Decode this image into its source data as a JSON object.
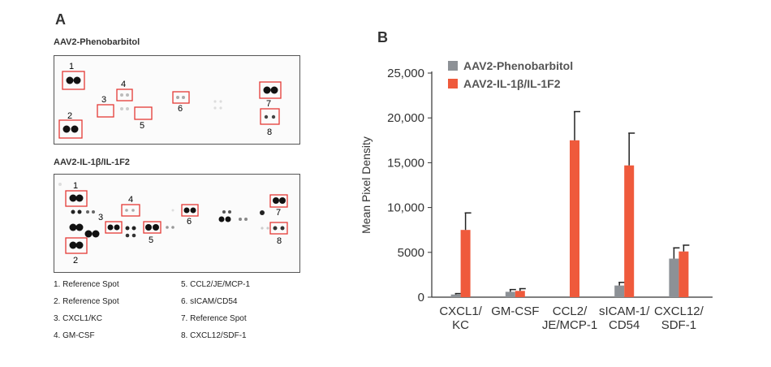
{
  "panel_a": {
    "letter": "A",
    "blot1": {
      "title": "AAV2-Phenobarbitol",
      "labels": [
        "1",
        "2",
        "3",
        "4",
        "5",
        "6",
        "7",
        "8"
      ]
    },
    "blot2": {
      "title": "AAV2-IL-1β/IL-1F2",
      "labels": [
        "1",
        "2",
        "3",
        "4",
        "5",
        "6",
        "7",
        "8"
      ]
    },
    "legend_left": [
      "1. Reference Spot",
      "2. Reference Spot",
      "3. CXCL1/KC",
      "4. GM-CSF"
    ],
    "legend_right": [
      "5. CCL2/JE/MCP-1",
      "6. sICAM/CD54",
      "7. Reference Spot",
      "8. CXCL12/SDF-1"
    ]
  },
  "panel_b": {
    "letter": "B"
  },
  "colors": {
    "phenobarbitol": "#8d9196",
    "il1b": "#ef5a3c",
    "box": "#e53935"
  },
  "chart_data": {
    "type": "bar",
    "title": "",
    "xlabel": "",
    "ylabel": "Mean Pixel Density",
    "ylim": [
      0,
      25000
    ],
    "yticks": [
      0,
      5000,
      10000,
      15000,
      20000,
      25000
    ],
    "ytick_labels": [
      "0",
      "5000",
      "10,000",
      "15,000",
      "20,000",
      "25,000"
    ],
    "categories": [
      [
        "CXCL1/",
        "KC"
      ],
      [
        "GM-CSF"
      ],
      [
        "CCL2/",
        "JE/MCP-1"
      ],
      [
        "sICAM-1/",
        "CD54"
      ],
      [
        "CXCL12/",
        "SDF-1"
      ]
    ],
    "series": [
      {
        "name": "AAV2-Phenobarbitol",
        "values": [
          300,
          600,
          0,
          1300,
          4300
        ],
        "errors": [
          100,
          250,
          0,
          350,
          1200
        ]
      },
      {
        "name": "AAV2-IL-1β/IL-1F2",
        "values": [
          7500,
          700,
          17500,
          14700,
          5100
        ],
        "errors": [
          1900,
          250,
          3200,
          3600,
          700
        ]
      }
    ]
  }
}
